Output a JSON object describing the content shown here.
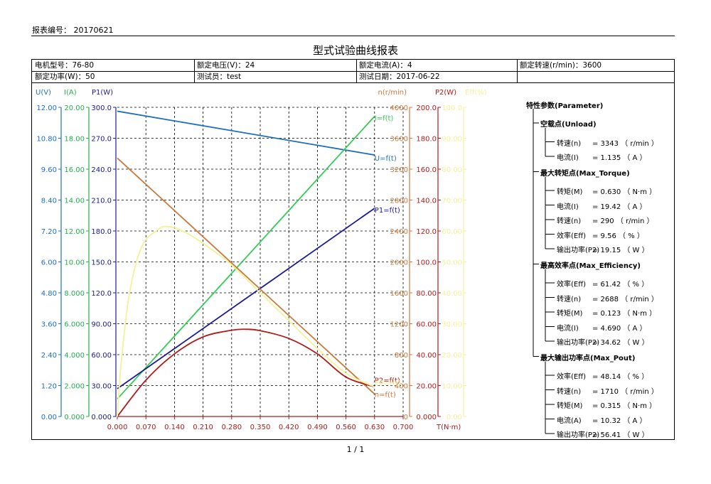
{
  "header": {
    "report_no": "报表编号： 20170621",
    "title": "型式试验曲线报表",
    "page": "1 / 1"
  },
  "info": {
    "row1": [
      "电机型号：76-80",
      "额定电压(V)：24",
      "额定电流(A)：4",
      "额定转速(r/min)：3600"
    ],
    "row2": [
      "额定功率(W)：50",
      "测试员：test",
      "测试日期：2017-06-22",
      ""
    ]
  },
  "params": {
    "title": "特性参数(Parameter)",
    "sections": [
      {
        "name": "空载点(Unload)",
        "items": [
          {
            "label": "转速(n)",
            "value": "=    3343 （ r/min ）"
          },
          {
            "label": "电流(I)",
            "value": "=  1.135 （ A ）"
          }
        ]
      },
      {
        "name": "最大转矩点(Max_Torque)",
        "items": [
          {
            "label": "转矩(M)",
            "value": "=  0.630 （ N·m ）"
          },
          {
            "label": "电流(I)",
            "value": "=  19.42 （ A ）"
          },
          {
            "label": "转速(n)",
            "value": "=    290 （ r/min ）"
          },
          {
            "label": "效率(Eff)",
            "value": "=    9.56 （ % ）"
          },
          {
            "label": "输出功率(P2)",
            "value": "=  19.15 （ W ）"
          }
        ]
      },
      {
        "name": "最高效率点(Max_Efficiency)",
        "items": [
          {
            "label": "效率(Eff)",
            "value": "=  61.42 （ % ）"
          },
          {
            "label": "转速(n)",
            "value": "=    2688 （ r/min ）"
          },
          {
            "label": "转矩(M)",
            "value": "=  0.123 （ N·m ）"
          },
          {
            "label": "电流(I)",
            "value": "=  4.690 （ A ）"
          },
          {
            "label": "输出功率(P2)",
            "value": "=  34.62 （ W ）"
          }
        ]
      },
      {
        "name": "最大输出功率点(Max_Pout)",
        "items": [
          {
            "label": "效率(Eff)",
            "value": "=  48.14 （ % ）"
          },
          {
            "label": "转速(n)",
            "value": "=    1710 （ r/min ）"
          },
          {
            "label": "转矩(M)",
            "value": "=  0.315 （ N·m ）"
          },
          {
            "label": "电流(A)",
            "value": "=  10.32 （ A ）"
          },
          {
            "label": "输出功率(P2)",
            "value": "=  56.41 （ W ）"
          }
        ]
      }
    ]
  },
  "chart_data": {
    "type": "line",
    "xlabel": "T(N·m)",
    "xlim": [
      0,
      0.7
    ],
    "xticks": [
      "0.000",
      "0.070",
      "0.140",
      "0.210",
      "0.280",
      "0.350",
      "0.420",
      "0.490",
      "0.560",
      "0.630",
      "0.700"
    ],
    "axes": [
      {
        "key": "U",
        "label": "U(V)",
        "color": "#1f6fbf",
        "ticks": [
          "0.00",
          "1.20",
          "2.40",
          "3.60",
          "4.80",
          "6.00",
          "7.20",
          "8.40",
          "9.60",
          "10.80",
          "12.00"
        ],
        "min": 0,
        "max": 12
      },
      {
        "key": "I",
        "label": "I(A)",
        "color": "#22b14c",
        "ticks": [
          "0.000",
          "2.000",
          "4.000",
          "6.000",
          "8.000",
          "10.00",
          "12.00",
          "14.00",
          "16.00",
          "18.00",
          "20.00"
        ],
        "min": 0,
        "max": 20
      },
      {
        "key": "P1",
        "label": "P1(W)",
        "color": "#1a1a9a",
        "ticks": [
          "0.000",
          "30.00",
          "60.00",
          "90.00",
          "120.0",
          "150.0",
          "180.0",
          "210.0",
          "240.0",
          "270.0",
          "300.0"
        ],
        "min": 0,
        "max": 300
      },
      {
        "key": "n",
        "label": "n(r/min)",
        "color": "#c87a3c",
        "ticks": [
          "0",
          "400",
          "800",
          "1200",
          "1600",
          "2000",
          "2400",
          "2800",
          "3200",
          "3600",
          "4000"
        ],
        "min": 0,
        "max": 4000
      },
      {
        "key": "P2",
        "label": "P2(W)",
        "color": "#b01c1c",
        "ticks": [
          "0.000",
          "20.00",
          "40.00",
          "60.00",
          "80.00",
          "100.0",
          "120.0",
          "140.0",
          "160.0",
          "180.0",
          "200.0"
        ],
        "min": 0,
        "max": 200
      },
      {
        "key": "Eff",
        "label": "Eff(%)",
        "color": "#f2f29a",
        "ticks": [
          "0.00",
          "10.00",
          "20.00",
          "30.00",
          "40.00",
          "50.00",
          "60.00",
          "70.00",
          "80.00",
          "90.00",
          "100.0"
        ],
        "min": 0,
        "max": 100
      }
    ],
    "series": [
      {
        "name": "U=f(t)",
        "axis": "U",
        "color": "#1f6fbf",
        "x": [
          0.0,
          0.63
        ],
        "y": [
          11.85,
          10.15
        ],
        "label_at": "end"
      },
      {
        "name": "I=f(t)",
        "axis": "I",
        "color": "#33cc55",
        "x": [
          0.0,
          0.63
        ],
        "y": [
          1.135,
          19.42
        ],
        "label_at": "end"
      },
      {
        "name": "P1=f(t)",
        "axis": "P1",
        "color": "#1a1a9a",
        "x": [
          0.0,
          0.63
        ],
        "y": [
          27,
          202
        ],
        "label_at": "end"
      },
      {
        "name": "n=f(t)",
        "axis": "n",
        "color": "#c87a3c",
        "x": [
          0.0,
          0.63
        ],
        "y": [
          3343,
          290
        ],
        "label_at": "end"
      },
      {
        "name": "P2=f(t)",
        "axis": "P2",
        "color": "#b01c1c",
        "x": [
          0.0,
          0.07,
          0.14,
          0.21,
          0.28,
          0.315,
          0.35,
          0.42,
          0.49,
          0.56,
          0.63
        ],
        "y": [
          0,
          23.5,
          40.5,
          51.5,
          55.8,
          56.41,
          55.5,
          50.5,
          40.5,
          25.5,
          19.15
        ],
        "label_at": "end"
      },
      {
        "name": "Eff=f(t)",
        "axis": "Eff",
        "color": "#f2f29a",
        "x": [
          0.0,
          0.01,
          0.03,
          0.06,
          0.1,
          0.123,
          0.16,
          0.21,
          0.28,
          0.35,
          0.42,
          0.49,
          0.56,
          0.63
        ],
        "y": [
          0,
          18,
          40,
          55,
          60.5,
          61.42,
          60,
          56,
          49,
          40,
          31,
          22,
          14,
          9.56
        ],
        "label_at": "end"
      }
    ]
  }
}
